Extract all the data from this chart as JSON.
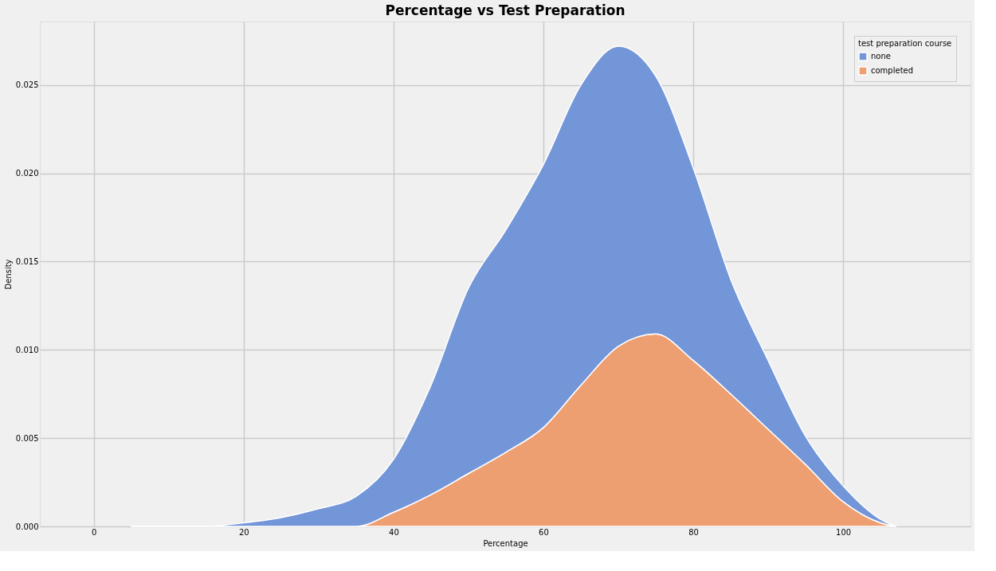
{
  "chart_data": {
    "type": "area",
    "title": "Percentage vs Test Preparation",
    "xlabel": "Percentage",
    "ylabel": "Density",
    "legend_title": "test preparation course",
    "stacked": true,
    "x": [
      5,
      10,
      15,
      20,
      25,
      30,
      35,
      40,
      45,
      50,
      55,
      60,
      65,
      70,
      75,
      80,
      85,
      90,
      95,
      100,
      105,
      107
    ],
    "series": [
      {
        "name": "completed",
        "color": "#ee9f72",
        "values": [
          0,
          0,
          0,
          0,
          0,
          0,
          0,
          0.0008,
          0.0018,
          0.003,
          0.0042,
          0.0056,
          0.008,
          0.0102,
          0.0109,
          0.0094,
          0.0075,
          0.0055,
          0.0035,
          0.0014,
          0.0002,
          0
        ]
      },
      {
        "name": "none",
        "color": "#7396d8",
        "values": [
          0,
          0,
          0,
          0.0002,
          0.0005,
          0.001,
          0.0017,
          0.003,
          0.0062,
          0.0105,
          0.0126,
          0.0149,
          0.017,
          0.017,
          0.0146,
          0.0109,
          0.0065,
          0.0039,
          0.0016,
          0.0009,
          0.0002,
          0
        ]
      }
    ],
    "xlim": [
      -7.2,
      117
    ],
    "xticks": [
      0,
      20,
      40,
      60,
      80,
      100
    ],
    "ylim": [
      0,
      0.0286
    ],
    "yticks": [
      {
        "value": 0,
        "label": "0.000"
      },
      {
        "value": 0.005,
        "label": "0.005"
      },
      {
        "value": 0.01,
        "label": "0.010"
      },
      {
        "value": 0.015,
        "label": "0.015"
      },
      {
        "value": 0.02,
        "label": "0.020"
      },
      {
        "value": 0.025,
        "label": "0.025"
      }
    ],
    "grid": true,
    "legend": "top right"
  }
}
